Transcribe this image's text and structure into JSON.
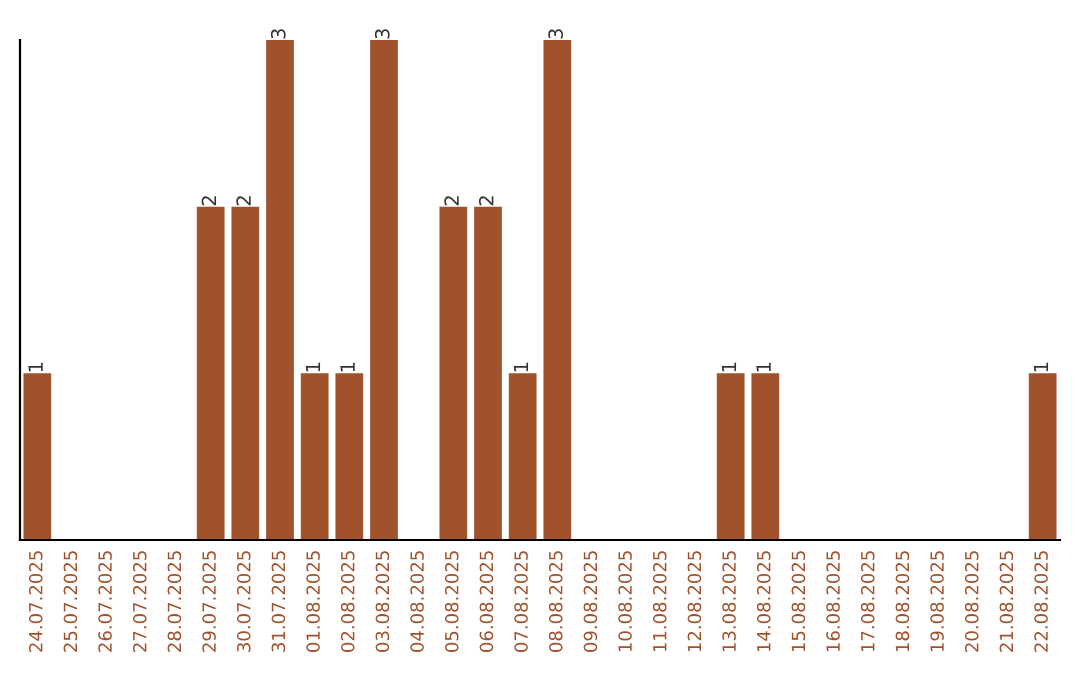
{
  "chart_data": {
    "type": "bar",
    "categories": [
      "24.07.2025",
      "25.07.2025",
      "26.07.2025",
      "27.07.2025",
      "28.07.2025",
      "29.07.2025",
      "30.07.2025",
      "31.07.2025",
      "01.08.2025",
      "02.08.2025",
      "03.08.2025",
      "04.08.2025",
      "05.08.2025",
      "06.08.2025",
      "07.08.2025",
      "08.08.2025",
      "09.08.2025",
      "10.08.2025",
      "11.08.2025",
      "12.08.2025",
      "13.08.2025",
      "14.08.2025",
      "15.08.2025",
      "16.08.2025",
      "17.08.2025",
      "18.08.2025",
      "19.08.2025",
      "20.08.2025",
      "21.08.2025",
      "22.08.2025"
    ],
    "values": [
      1,
      0,
      0,
      0,
      0,
      2,
      2,
      3,
      1,
      1,
      3,
      0,
      2,
      2,
      1,
      3,
      0,
      0,
      0,
      0,
      1,
      1,
      0,
      0,
      0,
      0,
      0,
      0,
      0,
      1
    ],
    "value_labels": [
      "1",
      null,
      null,
      null,
      null,
      "2",
      "2",
      "3",
      "1",
      "1",
      "3",
      null,
      "2",
      "2",
      "1",
      "3",
      null,
      null,
      null,
      null,
      "1",
      "1",
      null,
      null,
      null,
      null,
      null,
      null,
      null,
      "1"
    ],
    "color": "#a0522d",
    "ylim": [
      0,
      3
    ],
    "tick_labels": "x",
    "grid": false
  }
}
